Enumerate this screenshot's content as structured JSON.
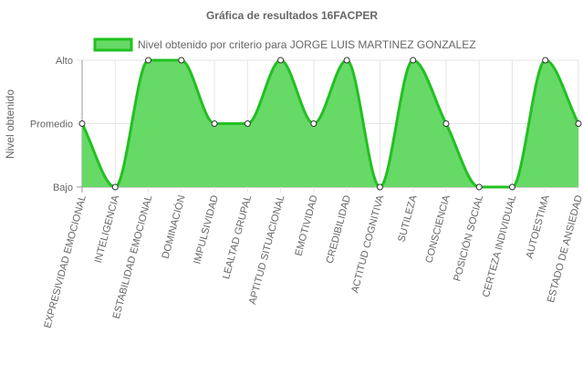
{
  "chart_data": {
    "type": "area",
    "title": "Gráfica de resultados 16FACPER",
    "ylabel": "Nivel obtenido",
    "xlabel": "",
    "y_levels": [
      "Bajo",
      "Promedio",
      "Alto"
    ],
    "ylim": [
      0,
      2
    ],
    "categories": [
      "EXPRESIVIDAD EMOCIONAL",
      "INTELIGENCIA",
      "ESTABILIDAD EMOCIONAL",
      "DOMINACIÓN",
      "IMPULSIVIDAD",
      "LEALTAD GRUPAL",
      "APTITUD SITUACIONAL",
      "EMOTIVIDAD",
      "CREDIBILIDAD",
      "ACTITUD COGNITIVA",
      "SUTILEZA",
      "CONSCIENCIA",
      "POSICIÓN SOCIAL",
      "CERTEZA INDIVIDUAL",
      "AUTOESTIMA",
      "ESTADO DE ANSIEDAD"
    ],
    "series": [
      {
        "name": "Nivel obtenido por criterio para JORGE LUIS MARTINEZ GONZALEZ",
        "values": [
          1,
          0,
          2,
          2,
          1,
          1,
          2,
          1,
          2,
          0,
          2,
          1,
          0,
          0,
          2,
          1
        ]
      }
    ],
    "grid": true,
    "legend_position": "top",
    "colors": {
      "fill": "#66d966",
      "line": "#22c022",
      "grid": "#e6e6e6",
      "axis": "#999999"
    }
  }
}
